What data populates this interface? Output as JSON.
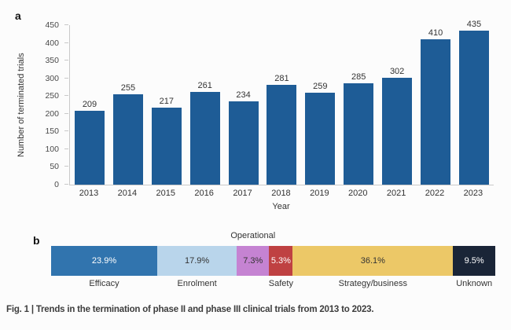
{
  "figure": {
    "caption": "Fig. 1 | Trends in the termination of phase II and phase III clinical trials from 2013 to 2023."
  },
  "panel_a": {
    "label": "a",
    "ylabel": "Number of terminated trials",
    "xlabel": "Year"
  },
  "panel_b": {
    "label": "b",
    "above_label": "Operational"
  },
  "colors": {
    "bar_blue": "#1e5c96",
    "axis_gray": "#c9c9c9"
  },
  "chart_data": [
    {
      "type": "bar",
      "panel": "a",
      "title": "",
      "categories": [
        "2013",
        "2014",
        "2015",
        "2016",
        "2017",
        "2018",
        "2019",
        "2020",
        "2021",
        "2022",
        "2023"
      ],
      "values": [
        209,
        255,
        217,
        261,
        234,
        281,
        259,
        285,
        302,
        410,
        435
      ],
      "xlabel": "Year",
      "ylabel": "Number of terminated trials",
      "ylim": [
        0,
        450
      ],
      "yticks": [
        0,
        50,
        100,
        150,
        200,
        250,
        300,
        350,
        400,
        450
      ],
      "grid": false,
      "legend": "none",
      "bar_color": "#1e5c96"
    },
    {
      "type": "bar",
      "panel": "b",
      "orientation": "horizontal-stacked",
      "title": "",
      "series": [
        {
          "name": "Efficacy",
          "value": 23.9,
          "display": "23.9%",
          "color": "#3174ae",
          "text_color": "#ffffff",
          "label_position": "below"
        },
        {
          "name": "Enrolment",
          "value": 17.9,
          "display": "17.9%",
          "color": "#b9d5eb",
          "text_color": "#333333",
          "label_position": "below"
        },
        {
          "name": "Operational",
          "value": 7.3,
          "display": "7.3%",
          "color": "#c583d2",
          "text_color": "#333333",
          "label_position": "above"
        },
        {
          "name": "Safety",
          "value": 5.3,
          "display": "5.3%",
          "color": "#bf4142",
          "text_color": "#ffffff",
          "label_position": "below"
        },
        {
          "name": "Strategy/business",
          "value": 36.1,
          "display": "36.1%",
          "color": "#ecc867",
          "text_color": "#333333",
          "label_position": "below"
        },
        {
          "name": "Unknown",
          "value": 9.5,
          "display": "9.5%",
          "color": "#1a2537",
          "text_color": "#ffffff",
          "label_position": "below"
        }
      ],
      "xlim": [
        0,
        100
      ],
      "legend": "none"
    }
  ]
}
